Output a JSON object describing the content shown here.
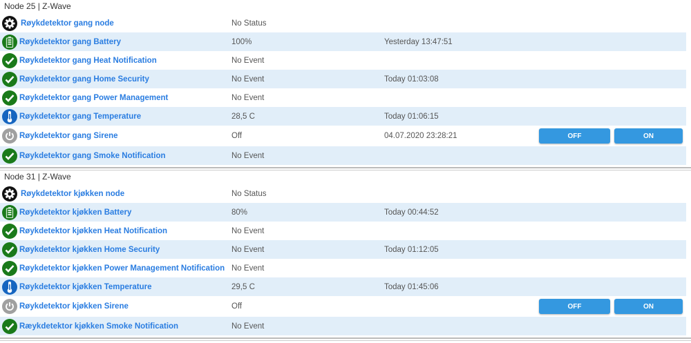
{
  "colors": {
    "link": "#2a7de1",
    "row_alt": "#e1eef9",
    "button": "#3498e0",
    "ok_green": "#1a7a1a",
    "temp_blue": "#1565c0",
    "power_gray": "#a0a0a0"
  },
  "sections": [
    {
      "title": "Node 25 | Z-Wave",
      "rows": [
        {
          "icon": "gear",
          "name": "Røykdetektor gang node",
          "value": "No Status",
          "time": ""
        },
        {
          "icon": "battery",
          "name": "Røykdetektor gang Battery",
          "value": "100%",
          "time": "Yesterday 13:47:51"
        },
        {
          "icon": "check",
          "name": "Røykdetektor gang Heat Notification",
          "value": "No Event",
          "time": ""
        },
        {
          "icon": "check",
          "name": "Røykdetektor gang Home Security",
          "value": "No Event",
          "time": "Today 01:03:08"
        },
        {
          "icon": "check",
          "name": "Røykdetektor gang Power Management",
          "value": "No Event",
          "time": ""
        },
        {
          "icon": "thermometer",
          "name": "Røykdetektor gang Temperature",
          "value": "28,5 C",
          "time": "Today 01:06:15"
        },
        {
          "icon": "power",
          "name": "Røykdetektor gang Sirene",
          "value": "Off",
          "time": "04.07.2020 23:28:21",
          "buttons": [
            "OFF",
            "ON"
          ]
        },
        {
          "icon": "check",
          "name": "Røykdetektor gang Smoke Notification",
          "value": "No Event",
          "time": ""
        }
      ]
    },
    {
      "title": "Node 31 | Z-Wave",
      "rows": [
        {
          "icon": "gear",
          "name": "Røykdetektor kjøkken node",
          "value": "No Status",
          "time": ""
        },
        {
          "icon": "battery",
          "name": "Røykdetektor kjøkken Battery",
          "value": "80%",
          "time": "Today 00:44:52"
        },
        {
          "icon": "check",
          "name": "Røykdetektor kjøkken Heat Notification",
          "value": "No Event",
          "time": ""
        },
        {
          "icon": "check",
          "name": "Røykdetektor kjøkken Home Security",
          "value": "No Event",
          "time": "Today 01:12:05"
        },
        {
          "icon": "check",
          "name": "Røykdetektor kjøkken Power Management Notification",
          "value": "No Event",
          "time": ""
        },
        {
          "icon": "thermometer",
          "name": "Røykdetektor kjøkken Temperature",
          "value": "29,5 C",
          "time": "Today 01:45:06"
        },
        {
          "icon": "power",
          "name": "Røykdetektor kjøkken Sirene",
          "value": "Off",
          "time": "",
          "buttons": [
            "OFF",
            "ON"
          ]
        },
        {
          "icon": "check",
          "name": "Ræykdetektor kjøkken Smoke Notification",
          "value": "No Event",
          "time": ""
        }
      ]
    }
  ]
}
